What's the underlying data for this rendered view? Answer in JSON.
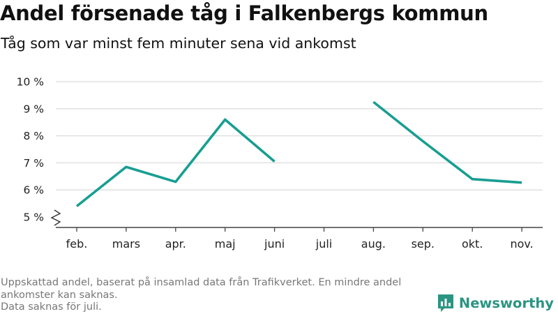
{
  "header": {
    "title": "Andel försenade tåg i Falkenbergs kommun",
    "subtitle": "Tåg som var minst fem minuter sena vid ankomst"
  },
  "chart_data": {
    "type": "line",
    "title": "Andel försenade tåg i Falkenbergs kommun",
    "subtitle": "Tåg som var minst fem minuter sena vid ankomst",
    "xlabel": "",
    "ylabel": "",
    "categories": [
      "feb.",
      "mars",
      "apr.",
      "maj",
      "juni",
      "juli",
      "aug.",
      "sep.",
      "okt.",
      "nov."
    ],
    "series": [
      {
        "values": [
          5.4,
          6.85,
          6.3,
          8.6,
          7.05,
          null,
          9.25,
          7.8,
          6.4,
          6.27
        ]
      }
    ],
    "y_ticks": [
      5,
      6,
      7,
      8,
      9,
      10
    ],
    "y_tick_labels": [
      "5 %",
      "6 %",
      "7 %",
      "8 %",
      "9 %",
      "10 %"
    ],
    "ylim": [
      5,
      10
    ],
    "y_axis_break": true,
    "grid": true,
    "line_color": "#189e92",
    "grid_color": "#dddddd"
  },
  "footer": {
    "note_line1": "Uppskattad andel, baserat på insamlad data från Trafikverket. En mindre andel ankomster kan saknas.",
    "note_line2": "Data saknas för juli.",
    "brand": "Newsworthy",
    "brand_color": "#2b9482"
  }
}
